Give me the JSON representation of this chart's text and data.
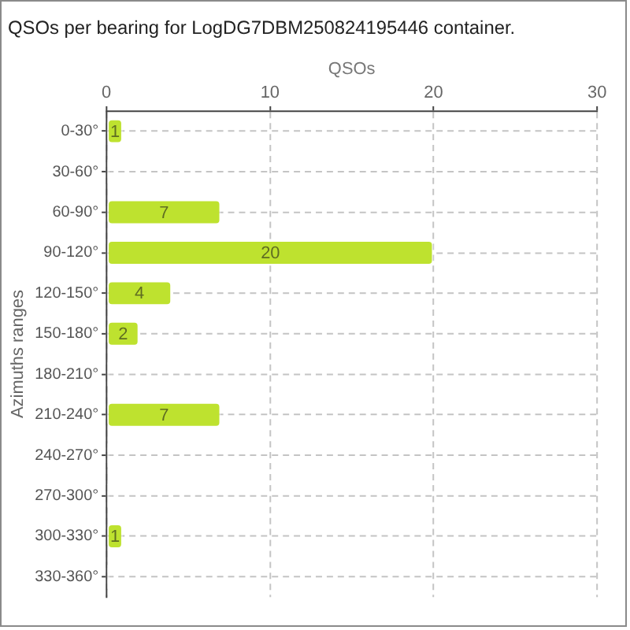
{
  "chart_data": {
    "type": "bar",
    "title": "QSOs per bearing for LogDG7DBM250824195446 container.",
    "xlabel": "QSOs",
    "ylabel": "Azimuths ranges",
    "orientation": "horizontal",
    "categories": [
      "0-30°",
      "30-60°",
      "60-90°",
      "90-120°",
      "120-150°",
      "150-180°",
      "180-210°",
      "210-240°",
      "240-270°",
      "270-300°",
      "300-330°",
      "330-360°"
    ],
    "values": [
      1,
      0,
      7,
      20,
      4,
      2,
      0,
      7,
      0,
      0,
      1,
      0
    ],
    "value_labels": [
      "1",
      null,
      "7",
      "20",
      "4",
      "2",
      null,
      "7",
      null,
      null,
      "1",
      null
    ],
    "color": "#bee22f",
    "xlim": [
      0,
      30
    ],
    "xticks": [
      0,
      10,
      20,
      30
    ],
    "grid": true
  }
}
